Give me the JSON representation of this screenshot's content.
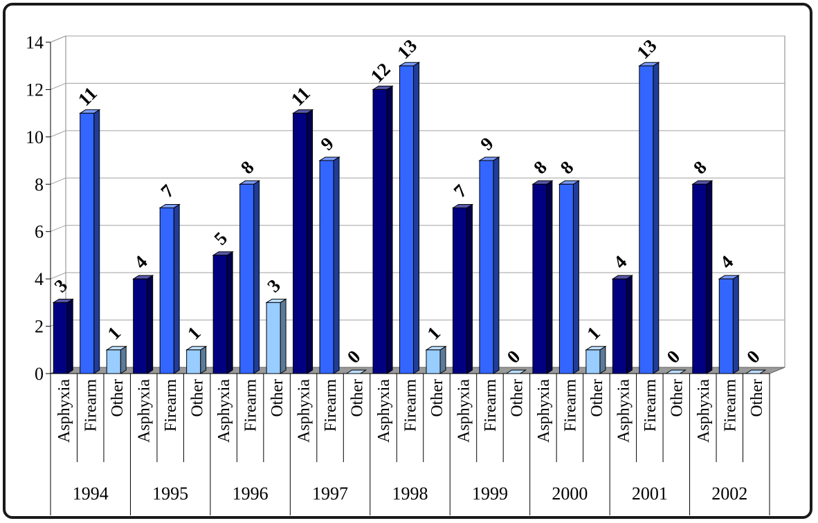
{
  "chart_data": {
    "type": "bar",
    "title": "",
    "xlabel": "",
    "ylabel": "",
    "ylim": [
      0,
      14
    ],
    "yticks": [
      "0",
      "2",
      "4",
      "6",
      "8",
      "10",
      "12",
      "14"
    ],
    "grid": true,
    "legend": "none",
    "three_d": true,
    "groups": [
      "1994",
      "1995",
      "1996",
      "1997",
      "1998",
      "1999",
      "2000",
      "2001",
      "2002"
    ],
    "categories": [
      "Asphyxia",
      "Firearm",
      "Other"
    ],
    "colors": {
      "Asphyxia": "#000080",
      "Firearm": "#3366ff",
      "Other": "#99ccff"
    },
    "values": [
      [
        3,
        11,
        1
      ],
      [
        4,
        7,
        1
      ],
      [
        5,
        8,
        3
      ],
      [
        11,
        9,
        0
      ],
      [
        12,
        13,
        1
      ],
      [
        7,
        9,
        0
      ],
      [
        8,
        8,
        1
      ],
      [
        4,
        13,
        0
      ],
      [
        8,
        4,
        0
      ]
    ]
  }
}
